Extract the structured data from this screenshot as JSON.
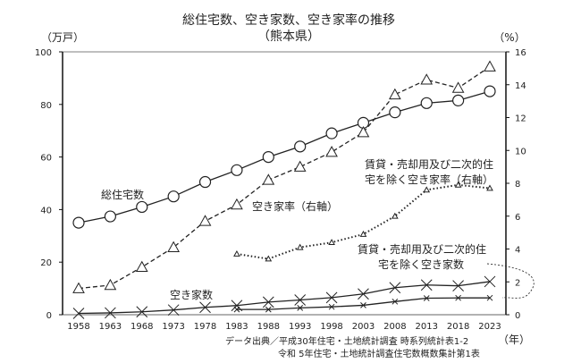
{
  "chart_data": {
    "type": "line",
    "title": "総住宅数、空き家数、空き家率の推移",
    "subtitle": "（熊本県）",
    "xlabel": "（年）",
    "ylabel_left": "（万戸）",
    "ylabel_right": "（%）",
    "ylim_left": [
      0,
      100
    ],
    "ylim_right": [
      0,
      16
    ],
    "yticks_left": [
      "0",
      "20",
      "40",
      "60",
      "80",
      "100"
    ],
    "yticks_right": [
      "0",
      "2",
      "4",
      "6",
      "8",
      "10",
      "12",
      "14",
      "16"
    ],
    "grid": false,
    "categories": [
      "1958",
      "1963",
      "1968",
      "1973",
      "1978",
      "1983",
      "1988",
      "1993",
      "1998",
      "2003",
      "2008",
      "2013",
      "2018",
      "2023"
    ],
    "series": [
      {
        "name": "総住宅数",
        "axis": "left",
        "marker": "circle",
        "style": "solid",
        "values": [
          35.0,
          37.4,
          41.0,
          45.0,
          50.5,
          55.0,
          60.0,
          64.0,
          69.0,
          73.0,
          77.0,
          80.5,
          81.5,
          85.0
        ]
      },
      {
        "name": "空き家率（右軸）",
        "axis": "right",
        "marker": "triangle",
        "style": "dashed",
        "values": [
          1.6,
          1.8,
          2.9,
          4.1,
          5.7,
          6.7,
          8.2,
          9.0,
          9.9,
          11.1,
          13.4,
          14.3,
          13.8,
          15.1
        ]
      },
      {
        "name": "賃貸・売却用及び二次的住宅を除く空き家率（右軸）",
        "axis": "right",
        "marker": "small-triangle",
        "style": "dotted",
        "values": [
          null,
          null,
          null,
          null,
          null,
          3.7,
          3.4,
          4.1,
          4.4,
          4.9,
          6.0,
          7.6,
          7.9,
          7.7
        ]
      },
      {
        "name": "空き家数",
        "axis": "left",
        "marker": "x",
        "style": "solid",
        "values": [
          0.5,
          0.7,
          1.1,
          1.8,
          2.8,
          3.5,
          4.8,
          5.6,
          6.5,
          7.9,
          10.3,
          11.3,
          11.0,
          12.6
        ]
      },
      {
        "name": "賃貸・売却用及び二次的住宅を除く空き家数",
        "axis": "left",
        "marker": "small-x",
        "style": "solid",
        "values": [
          null,
          null,
          null,
          null,
          null,
          2.0,
          2.0,
          2.6,
          3.0,
          3.6,
          5.0,
          6.3,
          6.4,
          6.4
        ]
      }
    ],
    "annotations": {
      "total_label": "総住宅数",
      "rate_label": "空き家率（右軸）",
      "excl_rate_label_1": "賃貸・売却用及び二次的住",
      "excl_rate_label_2": "宅を除く空き家率（右軸）",
      "excl_count_label_1": "賃貸・売却用及び二次的住",
      "excl_count_label_2": "宅を除く空き家数",
      "vacant_label": "空き家数"
    },
    "source_line_1": "データ出典／平成30年住宅・土地統計調査 時系列統計表1-2",
    "source_line_2": "令和 5年住宅・土地統計調査住宅数概数集計第1表"
  }
}
